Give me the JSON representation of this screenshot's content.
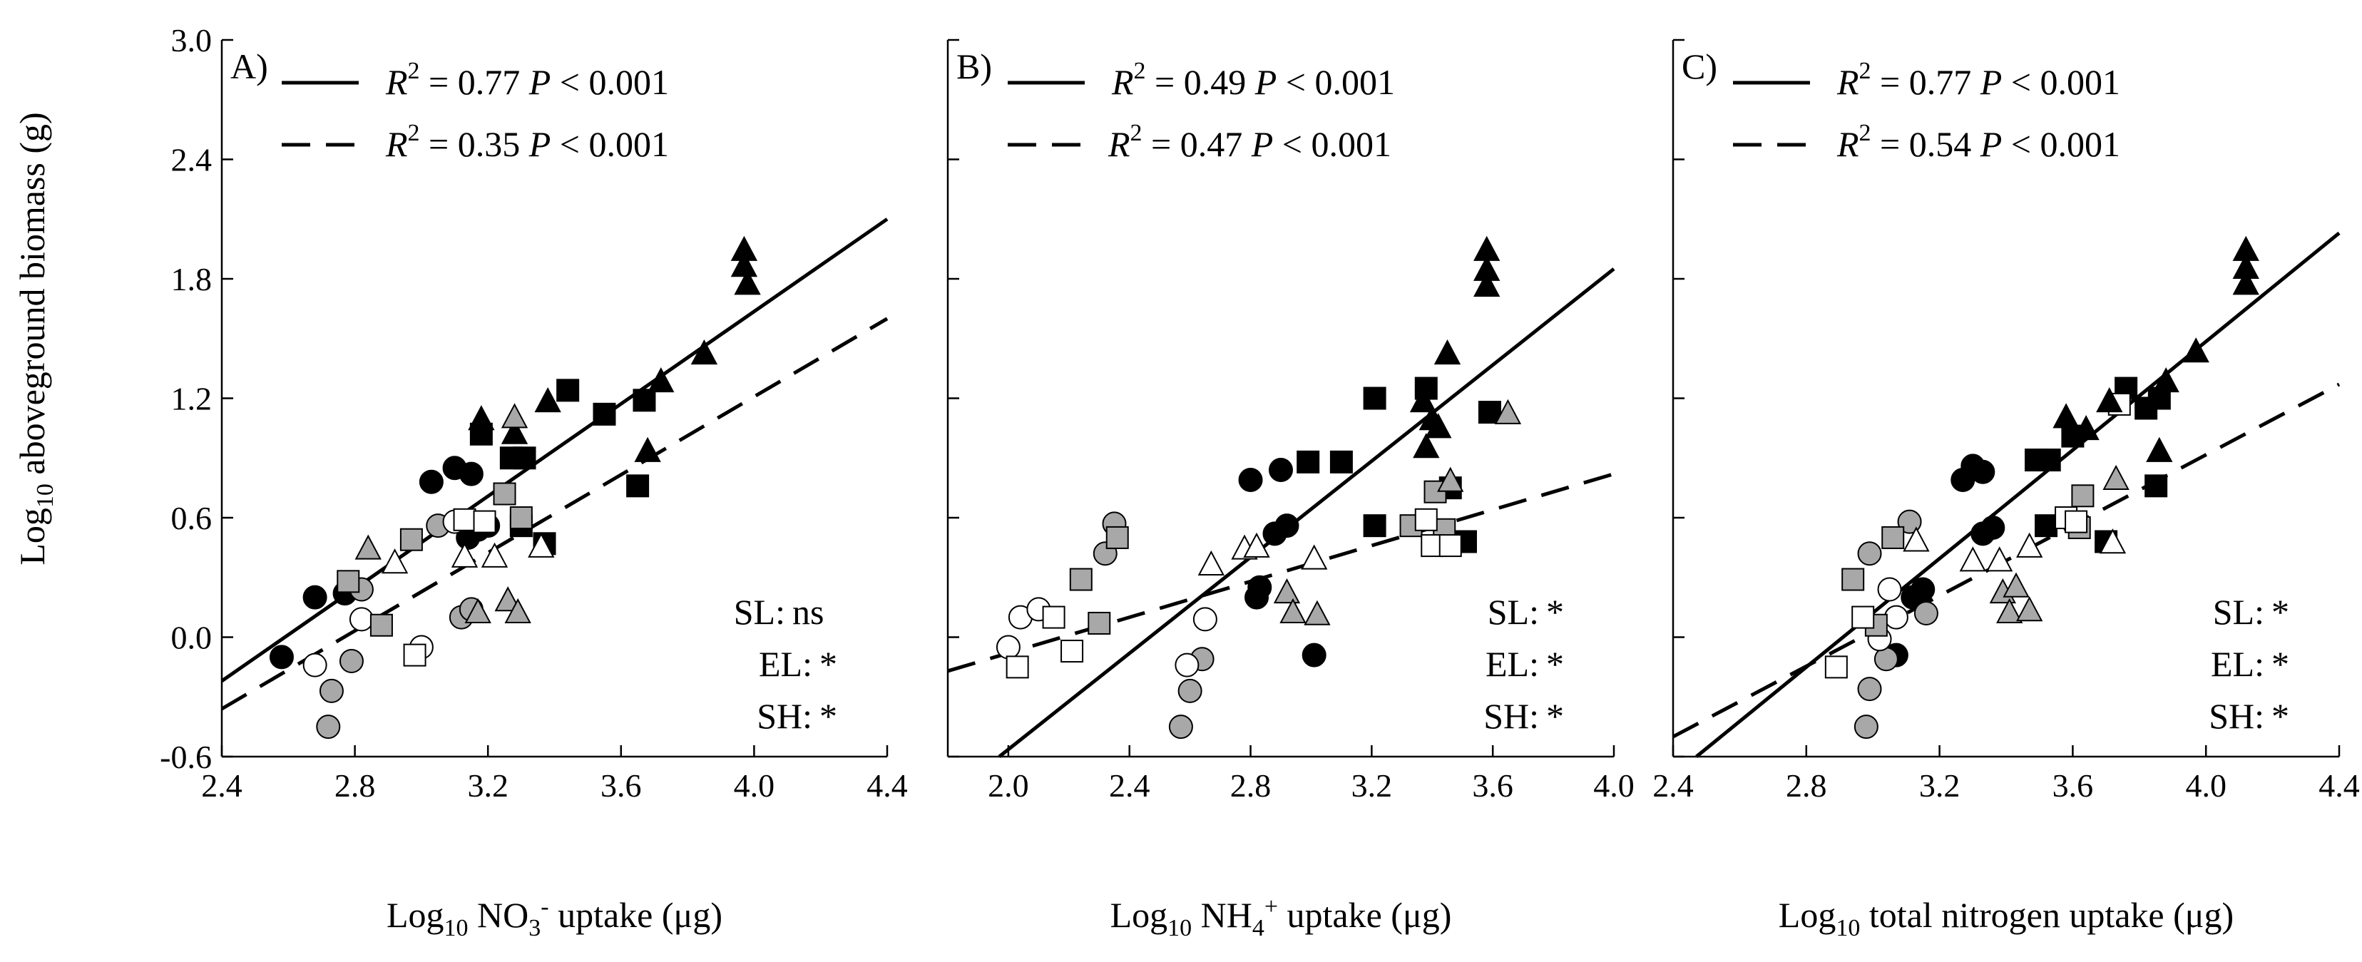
{
  "ylabel_main": "Log",
  "ylabel_sub": "10",
  "ylabel_rest": " aboveground biomass (g)",
  "chart_data": [
    {
      "type": "scatter",
      "panel": "A)",
      "xlabel": {
        "main": "Log",
        "sub": "10",
        "mid": " NO",
        "sub2": "3",
        "sup": "-",
        "rest": " uptake (μg)"
      },
      "xlim": [
        2.4,
        4.4
      ],
      "xticks": [
        2.4,
        2.8,
        3.2,
        3.6,
        4.0,
        4.4
      ],
      "xtick_labels": [
        "2.4",
        "2.8",
        "3.2",
        "3.6",
        "4.0",
        "4.4"
      ],
      "ylim": [
        -0.6,
        3.0
      ],
      "yticks": [
        -0.6,
        0.0,
        0.6,
        1.2,
        1.8,
        2.4,
        3.0
      ],
      "ytick_labels": [
        "-0.6",
        "0.0",
        "0.6",
        "1.2",
        "1.8",
        "2.4",
        "3.0"
      ],
      "legend": [
        {
          "style": "solid",
          "r2": "0.77",
          "p": "0.001"
        },
        {
          "style": "dashed",
          "r2": "0.35",
          "p": "0.001"
        }
      ],
      "stats": [
        {
          "label": "SL:",
          "value": "ns"
        },
        {
          "label": "EL:",
          "value": "*"
        },
        {
          "label": "SH:",
          "value": "*"
        }
      ],
      "fit_lines": [
        {
          "style": "solid",
          "x": [
            2.4,
            4.4
          ],
          "y": [
            -0.22,
            2.1
          ]
        },
        {
          "style": "dashed",
          "x": [
            2.4,
            4.4
          ],
          "y": [
            -0.36,
            1.6
          ]
        }
      ],
      "series": [
        {
          "name": "filled-circle",
          "points": [
            [
              2.58,
              -0.1
            ],
            [
              2.68,
              0.2
            ],
            [
              2.77,
              0.22
            ],
            [
              3.03,
              0.78
            ],
            [
              3.1,
              0.85
            ],
            [
              3.15,
              0.82
            ],
            [
              3.14,
              0.5
            ],
            [
              3.17,
              0.54
            ],
            [
              3.2,
              0.56
            ]
          ]
        },
        {
          "name": "gray-circle",
          "points": [
            [
              2.72,
              -0.45
            ],
            [
              2.73,
              -0.27
            ],
            [
              2.79,
              -0.12
            ],
            [
              2.82,
              0.24
            ],
            [
              3.05,
              0.56
            ],
            [
              3.12,
              0.1
            ],
            [
              3.15,
              0.14
            ]
          ]
        },
        {
          "name": "open-circle",
          "points": [
            [
              2.68,
              -0.14
            ],
            [
              2.82,
              0.09
            ],
            [
              3.0,
              -0.05
            ],
            [
              3.1,
              0.58
            ]
          ]
        },
        {
          "name": "filled-square",
          "points": [
            [
              3.18,
              1.02
            ],
            [
              3.27,
              0.9
            ],
            [
              3.31,
              0.9
            ],
            [
              3.3,
              0.56
            ],
            [
              3.37,
              0.47
            ],
            [
              3.44,
              1.24
            ],
            [
              3.55,
              1.12
            ],
            [
              3.65,
              0.76
            ],
            [
              3.67,
              1.19
            ]
          ]
        },
        {
          "name": "gray-square",
          "points": [
            [
              2.78,
              0.28
            ],
            [
              2.88,
              0.06
            ],
            [
              2.97,
              0.49
            ],
            [
              3.25,
              0.72
            ],
            [
              3.3,
              0.6
            ]
          ]
        },
        {
          "name": "open-square",
          "points": [
            [
              2.98,
              -0.09
            ],
            [
              3.13,
              0.59
            ],
            [
              3.19,
              0.58
            ]
          ]
        },
        {
          "name": "filled-triangle",
          "points": [
            [
              3.18,
              1.09
            ],
            [
              3.28,
              1.02
            ],
            [
              3.38,
              1.18
            ],
            [
              3.68,
              0.93
            ],
            [
              3.72,
              1.28
            ],
            [
              3.85,
              1.42
            ],
            [
              3.97,
              1.94
            ],
            [
              3.97,
              1.86
            ],
            [
              3.98,
              1.77
            ]
          ]
        },
        {
          "name": "gray-triangle",
          "points": [
            [
              2.84,
              0.44
            ],
            [
              3.17,
              0.12
            ],
            [
              3.26,
              0.18
            ],
            [
              3.28,
              1.1
            ],
            [
              3.29,
              0.12
            ]
          ]
        },
        {
          "name": "open-triangle",
          "points": [
            [
              2.92,
              0.37
            ],
            [
              3.13,
              0.4
            ],
            [
              3.22,
              0.4
            ],
            [
              3.36,
              0.45
            ]
          ]
        }
      ]
    },
    {
      "type": "scatter",
      "panel": "B)",
      "xlabel": {
        "main": "Log",
        "sub": "10",
        "mid": " NH",
        "sub2": "4",
        "sup": "+",
        "rest": " uptake (μg)"
      },
      "xlim": [
        1.8,
        4.0
      ],
      "xticks": [
        2.0,
        2.4,
        2.8,
        3.2,
        3.6,
        4.0
      ],
      "xtick_labels": [
        "2.0",
        "2.4",
        "2.8",
        "3.2",
        "3.6",
        "4.0"
      ],
      "ylim": [
        -0.6,
        3.0
      ],
      "yticks": [
        -0.6,
        0.0,
        0.6,
        1.2,
        1.8,
        2.4,
        3.0
      ],
      "ytick_labels": [],
      "legend": [
        {
          "style": "solid",
          "r2": "0.49",
          "p": "0.001"
        },
        {
          "style": "dashed",
          "r2": "0.47",
          "p": "0.001"
        }
      ],
      "stats": [
        {
          "label": "SL:",
          "value": "*"
        },
        {
          "label": "EL:",
          "value": "*"
        },
        {
          "label": "SH:",
          "value": "*"
        }
      ],
      "fit_lines": [
        {
          "style": "solid",
          "x": [
            1.97,
            4.0
          ],
          "y": [
            -0.6,
            1.85
          ]
        },
        {
          "style": "dashed",
          "x": [
            1.8,
            4.0
          ],
          "y": [
            -0.17,
            0.82
          ]
        }
      ],
      "series": [
        {
          "name": "filled-circle",
          "points": [
            [
              2.8,
              0.79
            ],
            [
              2.82,
              0.2
            ],
            [
              2.83,
              0.25
            ],
            [
              2.88,
              0.52
            ],
            [
              2.9,
              0.84
            ],
            [
              2.92,
              0.56
            ],
            [
              3.01,
              -0.09
            ]
          ]
        },
        {
          "name": "gray-circle",
          "points": [
            [
              2.32,
              0.42
            ],
            [
              2.35,
              0.57
            ],
            [
              2.57,
              -0.45
            ],
            [
              2.6,
              -0.27
            ],
            [
              2.64,
              -0.11
            ]
          ]
        },
        {
          "name": "open-circle",
          "points": [
            [
              2.0,
              -0.05
            ],
            [
              2.04,
              0.1
            ],
            [
              2.1,
              0.14
            ],
            [
              2.59,
              -0.14
            ],
            [
              2.65,
              0.09
            ]
          ]
        },
        {
          "name": "filled-square",
          "points": [
            [
              2.99,
              0.88
            ],
            [
              3.1,
              0.88
            ],
            [
              3.21,
              1.2
            ],
            [
              3.21,
              0.56
            ],
            [
              3.38,
              1.25
            ],
            [
              3.46,
              0.75
            ],
            [
              3.51,
              0.48
            ],
            [
              3.59,
              1.13
            ]
          ]
        },
        {
          "name": "gray-square",
          "points": [
            [
              2.24,
              0.29
            ],
            [
              2.3,
              0.07
            ],
            [
              2.36,
              0.5
            ],
            [
              3.33,
              0.56
            ],
            [
              3.41,
              0.73
            ],
            [
              3.44,
              0.54
            ]
          ]
        },
        {
          "name": "open-square",
          "points": [
            [
              2.03,
              -0.15
            ],
            [
              2.15,
              0.1
            ],
            [
              2.21,
              -0.07
            ],
            [
              3.38,
              0.59
            ],
            [
              3.4,
              0.46
            ],
            [
              3.46,
              0.46
            ]
          ]
        },
        {
          "name": "filled-triangle",
          "points": [
            [
              3.37,
              1.18
            ],
            [
              3.38,
              0.95
            ],
            [
              3.4,
              1.09
            ],
            [
              3.42,
              1.05
            ],
            [
              3.45,
              1.42
            ],
            [
              3.58,
              1.94
            ],
            [
              3.58,
              1.84
            ],
            [
              3.58,
              1.76
            ]
          ]
        },
        {
          "name": "gray-triangle",
          "points": [
            [
              2.92,
              0.22
            ],
            [
              2.94,
              0.12
            ],
            [
              3.02,
              0.11
            ],
            [
              3.46,
              0.78
            ],
            [
              3.65,
              1.12
            ]
          ]
        },
        {
          "name": "open-triangle",
          "points": [
            [
              2.67,
              0.36
            ],
            [
              2.78,
              0.44
            ],
            [
              2.82,
              0.45
            ],
            [
              3.01,
              0.39
            ]
          ]
        }
      ]
    },
    {
      "type": "scatter",
      "panel": "C)",
      "xlabel": {
        "main": "Log",
        "sub": "10",
        "mid": " total nitrogen uptake (μg)",
        "sub2": "",
        "sup": "",
        "rest": ""
      },
      "xlim": [
        2.4,
        4.4
      ],
      "xticks": [
        2.4,
        2.8,
        3.2,
        3.6,
        4.0,
        4.4
      ],
      "xtick_labels": [
        "2.4",
        "2.8",
        "3.2",
        "3.6",
        "4.0",
        "4.4"
      ],
      "ylim": [
        -0.6,
        3.0
      ],
      "yticks": [
        -0.6,
        0.0,
        0.6,
        1.2,
        1.8,
        2.4,
        3.0
      ],
      "ytick_labels": [],
      "legend": [
        {
          "style": "solid",
          "r2": "0.77",
          "p": "0.001"
        },
        {
          "style": "dashed",
          "r2": "0.54",
          "p": "0.001"
        }
      ],
      "stats": [
        {
          "label": "SL:",
          "value": "*"
        },
        {
          "label": "EL:",
          "value": "*"
        },
        {
          "label": "SH:",
          "value": "*"
        }
      ],
      "fit_lines": [
        {
          "style": "solid",
          "x": [
            2.47,
            4.4
          ],
          "y": [
            -0.6,
            2.03
          ]
        },
        {
          "style": "dashed",
          "x": [
            2.4,
            4.4
          ],
          "y": [
            -0.5,
            1.27
          ]
        }
      ],
      "series": [
        {
          "name": "filled-circle",
          "points": [
            [
              3.07,
              -0.09
            ],
            [
              3.12,
              0.2
            ],
            [
              3.15,
              0.24
            ],
            [
              3.27,
              0.79
            ],
            [
              3.3,
              0.86
            ],
            [
              3.33,
              0.83
            ],
            [
              3.33,
              0.52
            ],
            [
              3.36,
              0.55
            ]
          ]
        },
        {
          "name": "gray-circle",
          "points": [
            [
              2.98,
              -0.45
            ],
            [
              2.99,
              -0.26
            ],
            [
              3.04,
              -0.11
            ],
            [
              3.11,
              0.58
            ],
            [
              3.16,
              0.12
            ],
            [
              2.99,
              0.42
            ]
          ]
        },
        {
          "name": "open-circle",
          "points": [
            [
              3.05,
              0.24
            ],
            [
              3.07,
              0.1
            ],
            [
              3.02,
              -0.01
            ]
          ]
        },
        {
          "name": "filled-square",
          "points": [
            [
              3.49,
              0.89
            ],
            [
              3.53,
              0.89
            ],
            [
              3.52,
              0.56
            ],
            [
              3.6,
              1.01
            ],
            [
              3.7,
              0.48
            ],
            [
              3.76,
              1.25
            ],
            [
              3.82,
              1.15
            ],
            [
              3.85,
              0.76
            ],
            [
              3.86,
              1.2
            ]
          ]
        },
        {
          "name": "gray-square",
          "points": [
            [
              2.94,
              0.29
            ],
            [
              3.01,
              0.06
            ],
            [
              3.06,
              0.5
            ],
            [
              3.63,
              0.71
            ],
            [
              3.62,
              0.55
            ]
          ]
        },
        {
          "name": "open-square",
          "points": [
            [
              2.89,
              -0.15
            ],
            [
              2.97,
              0.1
            ],
            [
              3.58,
              0.6
            ],
            [
              3.74,
              1.17
            ],
            [
              3.61,
              0.58
            ]
          ]
        },
        {
          "name": "filled-triangle",
          "points": [
            [
              3.58,
              1.1
            ],
            [
              3.64,
              1.04
            ],
            [
              3.71,
              1.18
            ],
            [
              3.86,
              0.93
            ],
            [
              3.88,
              1.28
            ],
            [
              3.97,
              1.43
            ],
            [
              4.12,
              1.94
            ],
            [
              4.12,
              1.85
            ],
            [
              4.12,
              1.77
            ]
          ]
        },
        {
          "name": "gray-triangle",
          "points": [
            [
              3.39,
              0.22
            ],
            [
              3.41,
              0.12
            ],
            [
              3.43,
              0.25
            ],
            [
              3.47,
              0.13
            ],
            [
              3.73,
              0.79
            ]
          ]
        },
        {
          "name": "open-triangle",
          "points": [
            [
              3.13,
              0.48
            ],
            [
              3.3,
              0.38
            ],
            [
              3.38,
              0.38
            ],
            [
              3.47,
              0.45
            ],
            [
              3.72,
              0.47
            ]
          ]
        }
      ]
    }
  ]
}
